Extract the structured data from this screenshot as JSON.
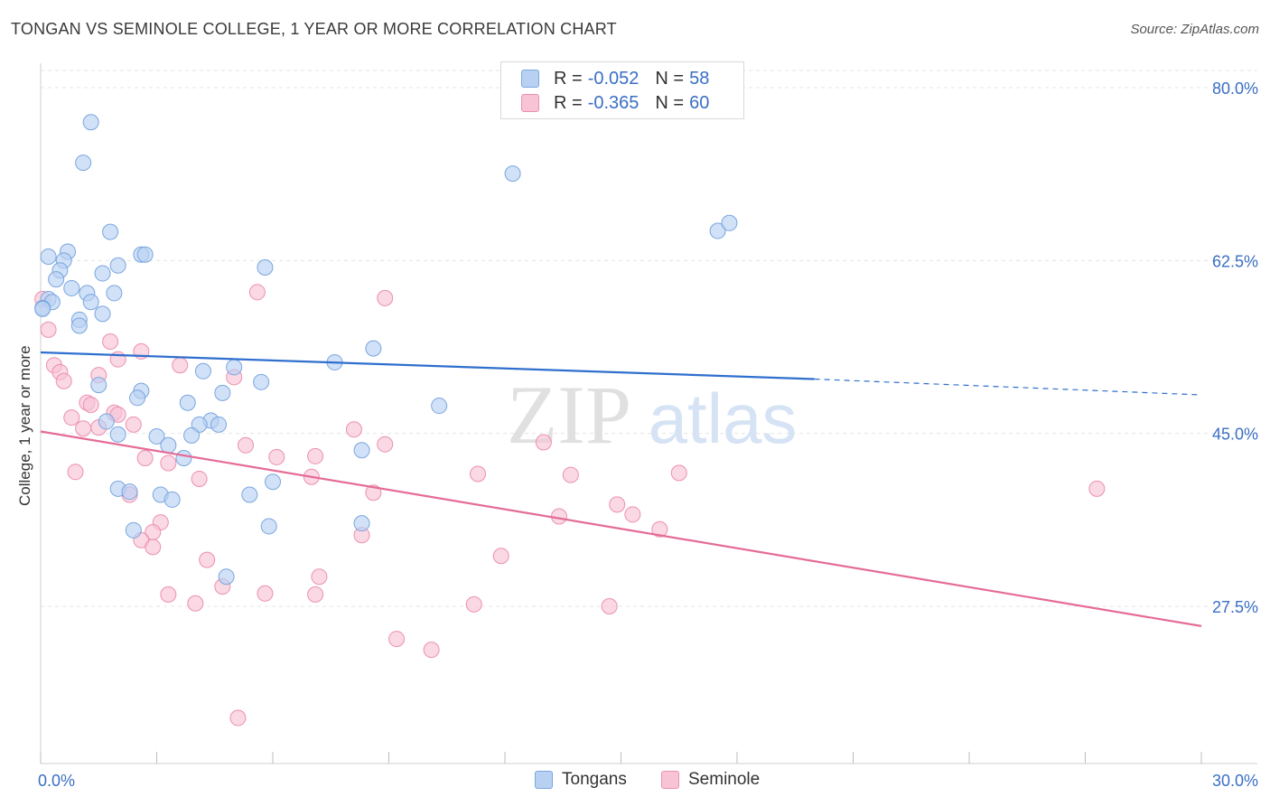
{
  "title": "TONGAN VS SEMINOLE COLLEGE, 1 YEAR OR MORE CORRELATION CHART",
  "source": "Source: ZipAtlas.com",
  "watermark": {
    "zip": "ZIP",
    "atlas": "atlas"
  },
  "colors": {
    "blue_fill": "#b8d1f3",
    "blue_stroke": "#7aa6de",
    "blue_line": "#2f6fce",
    "pink_fill": "#f8c3d5",
    "pink_stroke": "#ec90b0",
    "pink_line": "#e56b98",
    "axis_text": "#3a6fc4",
    "grid": "#e4e4e4"
  },
  "legend": {
    "rows": [
      {
        "r_label": "R =",
        "r_value": "-0.052",
        "n_label": "N =",
        "n_value": "58"
      },
      {
        "r_label": "R =",
        "r_value": "-0.365",
        "n_label": "N =",
        "n_value": "60"
      }
    ]
  },
  "bottom_legend": [
    "Tongans",
    "Seminole"
  ],
  "chart_data": {
    "type": "scatter",
    "title": "TONGAN VS SEMINOLE COLLEGE, 1 YEAR OR MORE CORRELATION CHART",
    "xlabel": "",
    "ylabel": "College, 1 year or more",
    "xlim": [
      0,
      30
    ],
    "ylim": [
      10,
      83
    ],
    "x_tick_labels": [
      {
        "value": 0,
        "label": "0.0%"
      },
      {
        "value": 30,
        "label": "30.0%"
      }
    ],
    "y_tick_labels": [
      {
        "value": 80,
        "label": "80.0%"
      },
      {
        "value": 62.5,
        "label": "62.5%"
      },
      {
        "value": 45,
        "label": "45.0%"
      },
      {
        "value": 27.5,
        "label": "27.5%"
      }
    ],
    "x_minor_ticks": [
      0,
      3,
      6,
      9,
      12,
      15,
      18,
      21,
      24,
      27,
      30
    ],
    "series": [
      {
        "name": "Tongans",
        "R": -0.052,
        "N": 58,
        "trend": {
          "x0": 0,
          "y0": 53.2,
          "x1": 20,
          "y1": 50.5,
          "dash_x1": 30,
          "dash_y1": 48.9
        },
        "points": [
          [
            1.3,
            76.5
          ],
          [
            1.1,
            72.4
          ],
          [
            12.2,
            71.3
          ],
          [
            1.8,
            65.4
          ],
          [
            17.5,
            65.5
          ],
          [
            17.8,
            66.3
          ],
          [
            0.2,
            62.9
          ],
          [
            0.7,
            63.4
          ],
          [
            0.6,
            62.5
          ],
          [
            0.5,
            61.5
          ],
          [
            0.4,
            60.6
          ],
          [
            2.0,
            62.0
          ],
          [
            2.6,
            63.1
          ],
          [
            2.7,
            63.1
          ],
          [
            1.6,
            61.2
          ],
          [
            5.8,
            61.8
          ],
          [
            0.8,
            59.7
          ],
          [
            1.2,
            59.2
          ],
          [
            1.9,
            59.2
          ],
          [
            0.2,
            58.6
          ],
          [
            0.3,
            58.3
          ],
          [
            0.05,
            57.7
          ],
          [
            1.3,
            58.3
          ],
          [
            1.6,
            57.1
          ],
          [
            1.0,
            56.5
          ],
          [
            1.0,
            55.9
          ],
          [
            8.6,
            53.6
          ],
          [
            7.6,
            52.2
          ],
          [
            5.0,
            51.7
          ],
          [
            4.2,
            51.3
          ],
          [
            1.5,
            49.9
          ],
          [
            5.7,
            50.2
          ],
          [
            2.6,
            49.3
          ],
          [
            4.7,
            49.1
          ],
          [
            2.5,
            48.6
          ],
          [
            3.8,
            48.1
          ],
          [
            10.3,
            47.8
          ],
          [
            4.4,
            46.3
          ],
          [
            4.1,
            45.9
          ],
          [
            4.6,
            45.9
          ],
          [
            1.7,
            46.2
          ],
          [
            2.0,
            44.9
          ],
          [
            3.0,
            44.7
          ],
          [
            3.9,
            44.8
          ],
          [
            3.3,
            43.8
          ],
          [
            8.3,
            43.3
          ],
          [
            3.7,
            42.5
          ],
          [
            6.0,
            40.1
          ],
          [
            2.0,
            39.4
          ],
          [
            2.3,
            39.1
          ],
          [
            3.1,
            38.8
          ],
          [
            5.4,
            38.8
          ],
          [
            3.4,
            38.3
          ],
          [
            8.3,
            35.9
          ],
          [
            2.4,
            35.2
          ],
          [
            5.9,
            35.6
          ],
          [
            4.8,
            30.5
          ],
          [
            0.05,
            57.6
          ]
        ]
      },
      {
        "name": "Seminole",
        "R": -0.365,
        "N": 60,
        "trend": {
          "x0": 0,
          "y0": 45.2,
          "x1": 30,
          "y1": 25.5
        },
        "points": [
          [
            0.05,
            58.6
          ],
          [
            0.2,
            55.5
          ],
          [
            5.6,
            59.3
          ],
          [
            8.9,
            58.7
          ],
          [
            1.8,
            54.3
          ],
          [
            2.6,
            53.3
          ],
          [
            2.0,
            52.5
          ],
          [
            3.6,
            51.9
          ],
          [
            0.35,
            51.9
          ],
          [
            0.5,
            51.2
          ],
          [
            0.6,
            50.3
          ],
          [
            1.5,
            50.9
          ],
          [
            5.0,
            50.7
          ],
          [
            1.2,
            48.1
          ],
          [
            1.3,
            47.9
          ],
          [
            1.9,
            47.1
          ],
          [
            2.0,
            46.9
          ],
          [
            0.8,
            46.6
          ],
          [
            2.4,
            45.9
          ],
          [
            1.5,
            45.6
          ],
          [
            1.1,
            45.5
          ],
          [
            8.1,
            45.4
          ],
          [
            13.0,
            44.1
          ],
          [
            5.3,
            43.8
          ],
          [
            8.9,
            43.9
          ],
          [
            2.7,
            42.5
          ],
          [
            6.1,
            42.6
          ],
          [
            7.1,
            42.7
          ],
          [
            3.3,
            42.0
          ],
          [
            0.9,
            41.1
          ],
          [
            11.3,
            40.9
          ],
          [
            13.7,
            40.8
          ],
          [
            16.5,
            41.0
          ],
          [
            4.1,
            40.4
          ],
          [
            7.0,
            40.6
          ],
          [
            8.6,
            39.0
          ],
          [
            2.3,
            38.8
          ],
          [
            27.3,
            39.4
          ],
          [
            14.9,
            37.8
          ],
          [
            15.3,
            36.8
          ],
          [
            13.4,
            36.6
          ],
          [
            3.1,
            36.0
          ],
          [
            2.9,
            35.0
          ],
          [
            8.3,
            34.7
          ],
          [
            16.0,
            35.3
          ],
          [
            2.6,
            34.2
          ],
          [
            2.9,
            33.5
          ],
          [
            11.9,
            32.6
          ],
          [
            4.3,
            32.2
          ],
          [
            7.2,
            30.5
          ],
          [
            4.7,
            29.5
          ],
          [
            3.3,
            28.7
          ],
          [
            5.8,
            28.8
          ],
          [
            7.1,
            28.7
          ],
          [
            4.0,
            27.8
          ],
          [
            11.2,
            27.7
          ],
          [
            14.7,
            27.5
          ],
          [
            9.2,
            24.2
          ],
          [
            10.1,
            23.1
          ],
          [
            5.1,
            16.2
          ]
        ]
      }
    ]
  }
}
